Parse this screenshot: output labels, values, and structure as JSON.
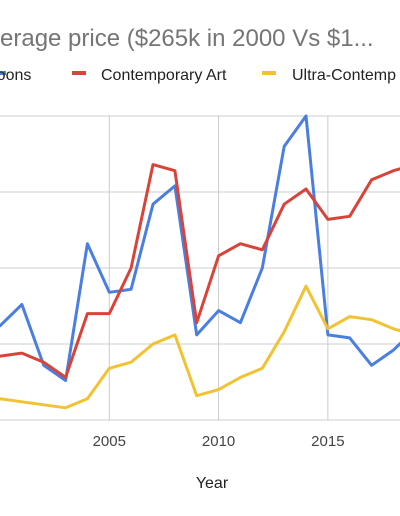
{
  "chart_data": {
    "type": "line",
    "title": "...erage price ($265k in 2000 Vs $1...",
    "xlabel": "Year",
    "ylabel": "",
    "x": [
      2000,
      2001,
      2002,
      2003,
      2004,
      2005,
      2006,
      2007,
      2008,
      2009,
      2010,
      2011,
      2012,
      2013,
      2014,
      2015,
      2016,
      2017,
      2018,
      2019
    ],
    "x_ticks": [
      2005,
      2010,
      2015
    ],
    "xlim": [
      2000,
      2018.3
    ],
    "ylim": [
      0,
      100
    ],
    "grid": true,
    "legend_position": "top",
    "series": [
      {
        "name": "Koons",
        "color": "#4a7fe0",
        "values": [
          31,
          38,
          18,
          13,
          58,
          42,
          43,
          71,
          77,
          28,
          36,
          32,
          50,
          90,
          100,
          28,
          27,
          18,
          23,
          30
        ]
      },
      {
        "name": "Contemporary Art",
        "color": "#d9443a",
        "values": [
          21,
          22,
          19,
          14,
          35,
          35,
          50,
          84,
          82,
          32,
          54,
          58,
          56,
          71,
          76,
          66,
          67,
          79,
          82,
          84
        ]
      },
      {
        "name": "Ultra-Contemp",
        "color": "#f1c232",
        "values": [
          7,
          6,
          5,
          4,
          7,
          17,
          19,
          25,
          28,
          8,
          10,
          14,
          17,
          29,
          44,
          30,
          34,
          33,
          30,
          28
        ]
      }
    ]
  }
}
